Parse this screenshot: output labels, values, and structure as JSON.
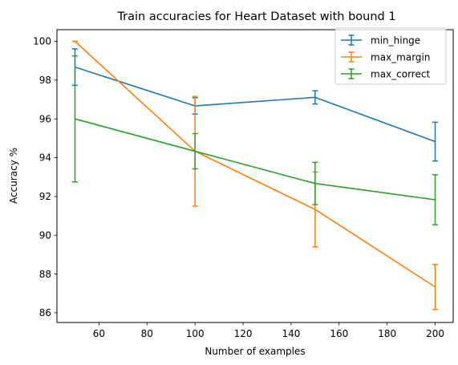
{
  "chart_data": {
    "type": "line",
    "title": "Train accuracies for Heart Dataset with bound 1",
    "xlabel": "Number of examples",
    "ylabel": "Accuracy %",
    "xlim": [
      42.5,
      207.5
    ],
    "ylim": [
      85.5,
      100.6
    ],
    "xticks": [
      60,
      80,
      100,
      120,
      140,
      160,
      180,
      200
    ],
    "yticks": [
      86,
      88,
      90,
      92,
      94,
      96,
      98,
      100
    ],
    "grid": false,
    "legend": "top-right",
    "x": [
      50,
      100,
      150,
      200
    ],
    "series": [
      {
        "name": "min_hinge",
        "color": "#1f77b4",
        "values": [
          98.67,
          96.67,
          97.11,
          94.83
        ],
        "err_low": [
          97.73,
          96.25,
          96.77,
          93.83
        ],
        "err_high": [
          99.61,
          97.09,
          97.45,
          95.83
        ]
      },
      {
        "name": "max_margin",
        "color": "#ff7f0e",
        "values": [
          100.0,
          94.33,
          91.33,
          87.33
        ],
        "err_low": [
          100.0,
          91.5,
          89.4,
          86.17
        ],
        "err_high": [
          100.0,
          97.16,
          93.26,
          88.49
        ]
      },
      {
        "name": "max_correct",
        "color": "#2ca02c",
        "values": [
          96.0,
          94.33,
          92.67,
          91.83
        ],
        "err_low": [
          92.75,
          93.42,
          91.58,
          90.54
        ],
        "err_high": [
          99.25,
          95.24,
          93.76,
          93.12
        ]
      }
    ]
  }
}
